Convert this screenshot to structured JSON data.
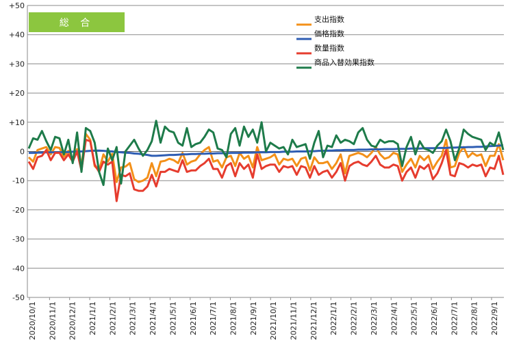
{
  "chart_data": {
    "type": "line",
    "badge_label": "総 合",
    "badge_color": "#8cc63f",
    "ylim": [
      -50,
      50
    ],
    "y_ticks": [
      50,
      40,
      30,
      20,
      10,
      0,
      -10,
      -20,
      -30,
      -40,
      -50
    ],
    "y_tick_labels": [
      "+50",
      "+40",
      "+30",
      "+20",
      "+10",
      "0",
      "-10",
      "-20",
      "-30",
      "-40",
      "-50"
    ],
    "x_labels": [
      "2020/10/1",
      "2020/11/1",
      "2020/12/1",
      "2021/1/1",
      "2021/2/1",
      "2021/3/1",
      "2021/4/1",
      "2021/5/1",
      "2021/6/1",
      "2021/7/1",
      "2021/8/1",
      "2021/9/1",
      "2021/10/1",
      "2021/11/1",
      "2021/12/1",
      "2022/1/1",
      "2022/2/1",
      "2022/3/1",
      "2022/4/1",
      "2022/5/1",
      "2022/6/1",
      "2022/7/1",
      "2022/8/1",
      "2022/9/1"
    ],
    "legend_position": "top-right",
    "series": [
      {
        "name": "支出指数",
        "color": "#f39019",
        "values": [
          -2.0,
          -3.5,
          0.5,
          1.0,
          1.5,
          -1.0,
          1.5,
          1.2,
          -1.8,
          0.2,
          -2.5,
          0.8,
          -4.5,
          6.0,
          4.0,
          -5.0,
          -6.5,
          -1.0,
          -3.5,
          -0.8,
          -10.5,
          -5.5,
          -5.2,
          -4.0,
          -9.5,
          -10.5,
          -10.0,
          -9.0,
          -4.0,
          -8.5,
          -3.5,
          -3.2,
          -2.5,
          -3.0,
          -4.0,
          -0.5,
          -4.5,
          -3.5,
          -3.0,
          -1.0,
          0.5,
          1.5,
          -3.5,
          -3.0,
          -5.5,
          -2.0,
          -1.5,
          -5.0,
          -0.5,
          -2.5,
          -1.5,
          -5.5,
          1.5,
          -3.0,
          -2.5,
          -2.0,
          -1.0,
          -4.5,
          -2.5,
          -3.0,
          -2.5,
          -5.0,
          -2.5,
          -2.0,
          -6.5,
          -2.0,
          -4.0,
          -4.0,
          -3.5,
          -6.0,
          -4.0,
          -1.0,
          -7.5,
          -1.5,
          -1.0,
          -0.5,
          -1.0,
          -2.0,
          -0.5,
          1.5,
          -1.0,
          -2.5,
          -2.0,
          -0.5,
          -1.0,
          -7.0,
          -4.5,
          -2.5,
          -5.5,
          -1.5,
          -3.0,
          -1.5,
          -6.0,
          -3.5,
          -1.5,
          4.0,
          -5.5,
          -5.0,
          -0.5,
          1.5,
          -2.0,
          -0.5,
          -1.5,
          -1.0,
          -5.0,
          -1.5,
          -1.5,
          2.5,
          -3.0
        ]
      },
      {
        "name": "価格指数",
        "color": "#2e5db3",
        "values": [
          -0.5,
          -0.5,
          -0.4,
          -0.4,
          -0.3,
          -0.3,
          -0.3,
          -0.3,
          -0.2,
          -0.2,
          -0.1,
          0.0,
          0.0,
          0.1,
          0.2,
          0.3,
          0.3,
          0.2,
          0.1,
          0.0,
          -0.2,
          -0.3,
          -0.4,
          -0.5,
          -0.7,
          -0.8,
          -1.0,
          -1.2,
          -1.5,
          -1.5,
          -1.4,
          -1.3,
          -1.2,
          -1.2,
          -1.1,
          -1.0,
          -1.0,
          -0.9,
          -0.9,
          -0.8,
          -0.8,
          -0.7,
          -0.7,
          -0.6,
          -0.6,
          -0.6,
          -0.5,
          -0.5,
          -0.5,
          -0.4,
          -0.4,
          -0.4,
          -0.3,
          -0.3,
          -0.3,
          -0.2,
          -0.2,
          -0.2,
          -0.1,
          -0.1,
          -0.1,
          0.0,
          0.0,
          0.0,
          0.1,
          0.1,
          0.2,
          0.2,
          0.3,
          0.3,
          0.4,
          0.4,
          0.5,
          0.5,
          0.5,
          0.6,
          0.6,
          0.6,
          0.7,
          0.7,
          0.7,
          0.8,
          0.8,
          0.8,
          0.9,
          0.9,
          0.9,
          1.0,
          1.0,
          1.0,
          1.1,
          1.1,
          1.1,
          1.2,
          1.2,
          1.2,
          1.3,
          1.3,
          1.4,
          1.4,
          1.5,
          1.5,
          1.6,
          1.6,
          1.7,
          1.8,
          1.9,
          2.0,
          2.1
        ]
      },
      {
        "name": "数量指数",
        "color": "#e63c2e",
        "values": [
          -3.5,
          -6.0,
          -2.0,
          -1.5,
          0.5,
          -3.0,
          -0.5,
          -0.5,
          -3.0,
          -1.0,
          -3.5,
          0.0,
          -6.5,
          4.0,
          3.5,
          -4.5,
          -7.0,
          -3.5,
          -4.5,
          -3.5,
          -17.0,
          -8.0,
          -8.5,
          -7.5,
          -13.0,
          -13.5,
          -13.5,
          -12.0,
          -8.0,
          -12.0,
          -7.0,
          -7.0,
          -6.0,
          -6.5,
          -7.0,
          -3.0,
          -7.0,
          -6.5,
          -6.5,
          -5.0,
          -4.0,
          -2.5,
          -6.0,
          -6.0,
          -9.0,
          -5.0,
          -4.0,
          -8.5,
          -4.0,
          -6.0,
          -4.5,
          -9.0,
          -1.0,
          -6.0,
          -5.0,
          -4.5,
          -4.5,
          -7.0,
          -5.0,
          -5.5,
          -5.0,
          -8.0,
          -5.0,
          -5.5,
          -9.0,
          -5.0,
          -8.0,
          -7.0,
          -6.5,
          -9.0,
          -7.0,
          -4.0,
          -10.0,
          -5.0,
          -4.0,
          -3.5,
          -4.5,
          -5.0,
          -3.5,
          -1.5,
          -4.5,
          -5.5,
          -5.5,
          -4.5,
          -5.0,
          -10.0,
          -7.0,
          -5.5,
          -9.0,
          -5.0,
          -6.0,
          -4.5,
          -9.5,
          -7.5,
          -4.0,
          0.5,
          -8.0,
          -8.5,
          -4.0,
          -4.5,
          -5.5,
          -4.5,
          -5.0,
          -4.5,
          -8.5,
          -5.5,
          -6.0,
          -1.5,
          -8.0
        ]
      },
      {
        "name": "商品入替効果指数",
        "color": "#1e7b4a",
        "values": [
          1.0,
          4.5,
          4.0,
          7.0,
          3.5,
          0.5,
          5.0,
          4.5,
          -1.0,
          4.0,
          -4.0,
          6.5,
          -7.0,
          8.0,
          7.0,
          3.0,
          -7.0,
          -11.5,
          1.0,
          -3.0,
          1.5,
          -11.0,
          0.0,
          2.0,
          4.0,
          1.0,
          -1.5,
          0.5,
          3.5,
          10.5,
          3.0,
          8.5,
          7.0,
          6.5,
          3.0,
          2.0,
          8.0,
          1.5,
          2.5,
          3.0,
          5.0,
          7.5,
          6.5,
          1.0,
          0.5,
          -2.0,
          6.0,
          8.0,
          2.0,
          8.5,
          5.0,
          7.5,
          3.0,
          10.0,
          0.0,
          3.0,
          2.0,
          1.0,
          1.5,
          -1.0,
          4.0,
          1.5,
          2.0,
          2.5,
          -2.5,
          3.0,
          7.0,
          -2.0,
          2.0,
          1.5,
          5.5,
          3.0,
          4.0,
          3.5,
          2.5,
          6.5,
          8.0,
          4.0,
          2.0,
          1.5,
          4.0,
          3.0,
          3.5,
          3.5,
          2.5,
          -5.0,
          1.5,
          5.0,
          -1.0,
          3.5,
          1.0,
          0.5,
          -0.5,
          2.0,
          3.5,
          7.5,
          3.5,
          -3.0,
          1.0,
          7.5,
          6.0,
          5.0,
          4.5,
          4.0,
          0.5,
          3.0,
          2.0,
          6.5,
          0.5
        ]
      }
    ]
  }
}
